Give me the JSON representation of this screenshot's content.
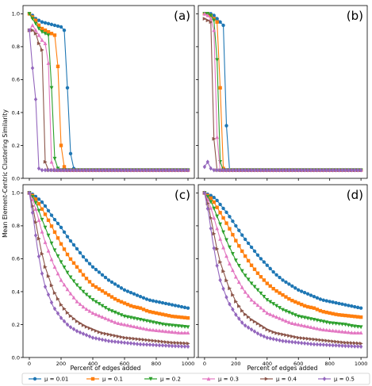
{
  "chart_data": {
    "type": "line",
    "ylabel": "Mean Element-Centric Clustering Similarity",
    "xlabel": "Percent of edges added",
    "xlim": [
      -40,
      1040
    ],
    "ylim": [
      0,
      1.05
    ],
    "xticks": [
      0,
      200,
      400,
      600,
      800,
      1000
    ],
    "yticks": [
      0.0,
      0.2,
      0.4,
      0.6,
      0.8,
      1.0
    ],
    "ytick_labels": [
      "0.0",
      "0.2",
      "0.4",
      "0.6",
      "0.8",
      "1.0"
    ],
    "grid": false,
    "legend": {
      "position": "bottom",
      "entries": [
        "μ = 0.01",
        "μ = 0.1",
        "μ = 0.2",
        "μ = 0.3",
        "μ = 0.4",
        "μ = 0.5"
      ]
    },
    "colors": [
      "#1f77b4",
      "#ff7f0e",
      "#2ca02c",
      "#e377c2",
      "#8c564b",
      "#9467bd"
    ],
    "markers": [
      "circle",
      "square",
      "triangle-down",
      "triangle-up",
      "triangle-right",
      "diamond"
    ],
    "panels": [
      {
        "label": "(a)",
        "series": [
          {
            "name": "μ = 0.01",
            "x": [
              0,
              20,
              40,
              60,
              80,
              100,
              120,
              140,
              160,
              180,
              200,
              220,
              240,
              260,
              280,
              300,
              1000
            ],
            "y": [
              1.0,
              0.99,
              0.97,
              0.96,
              0.95,
              0.945,
              0.94,
              0.935,
              0.93,
              0.925,
              0.92,
              0.9,
              0.55,
              0.15,
              0.06,
              0.05,
              0.05
            ]
          },
          {
            "name": "μ = 0.1",
            "x": [
              0,
              20,
              40,
              60,
              80,
              100,
              120,
              140,
              160,
              180,
              200,
              220,
              240,
              1000
            ],
            "y": [
              1.0,
              0.98,
              0.96,
              0.93,
              0.91,
              0.9,
              0.89,
              0.88,
              0.87,
              0.68,
              0.2,
              0.07,
              0.05,
              0.05
            ]
          },
          {
            "name": "μ = 0.2",
            "x": [
              0,
              20,
              40,
              60,
              80,
              100,
              120,
              140,
              160,
              180,
              200,
              1000
            ],
            "y": [
              1.0,
              0.97,
              0.94,
              0.91,
              0.89,
              0.88,
              0.87,
              0.55,
              0.12,
              0.06,
              0.05,
              0.05
            ]
          },
          {
            "name": "μ = 0.3",
            "x": [
              0,
              20,
              40,
              60,
              80,
              100,
              120,
              140,
              160,
              1000
            ],
            "y": [
              0.9,
              0.93,
              0.9,
              0.87,
              0.84,
              0.82,
              0.7,
              0.1,
              0.05,
              0.05
            ]
          },
          {
            "name": "μ = 0.4",
            "x": [
              0,
              20,
              40,
              60,
              80,
              100,
              120,
              1000
            ],
            "y": [
              0.9,
              0.9,
              0.88,
              0.82,
              0.78,
              0.1,
              0.05,
              0.05
            ]
          },
          {
            "name": "μ = 0.5",
            "x": [
              0,
              20,
              40,
              60,
              80,
              1000
            ],
            "y": [
              0.9,
              0.67,
              0.48,
              0.06,
              0.05,
              0.05
            ]
          }
        ]
      },
      {
        "label": "(b)",
        "series": [
          {
            "name": "μ = 0.01",
            "x": [
              0,
              20,
              40,
              60,
              80,
              100,
              120,
              140,
              160,
              1000
            ],
            "y": [
              1.0,
              1.0,
              1.0,
              0.99,
              0.97,
              0.95,
              0.93,
              0.32,
              0.05,
              0.05
            ]
          },
          {
            "name": "μ = 0.1",
            "x": [
              0,
              20,
              40,
              60,
              80,
              100,
              120,
              140,
              1000
            ],
            "y": [
              1.0,
              1.0,
              0.99,
              0.97,
              0.95,
              0.55,
              0.06,
              0.05,
              0.05
            ]
          },
          {
            "name": "μ = 0.2",
            "x": [
              0,
              20,
              40,
              60,
              80,
              100,
              120,
              1000
            ],
            "y": [
              1.0,
              1.0,
              0.99,
              0.96,
              0.72,
              0.1,
              0.05,
              0.05
            ]
          },
          {
            "name": "μ = 0.3",
            "x": [
              0,
              20,
              40,
              60,
              80,
              100,
              1000
            ],
            "y": [
              1.0,
              0.99,
              0.97,
              0.9,
              0.25,
              0.05,
              0.05
            ]
          },
          {
            "name": "μ = 0.4",
            "x": [
              0,
              20,
              40,
              60,
              80,
              1000
            ],
            "y": [
              0.97,
              0.96,
              0.95,
              0.24,
              0.05,
              0.05
            ]
          },
          {
            "name": "μ = 0.5",
            "x": [
              0,
              20,
              40,
              60,
              1000
            ],
            "y": [
              0.07,
              0.1,
              0.06,
              0.05,
              0.05
            ]
          }
        ]
      },
      {
        "label": "(c)",
        "series": [
          {
            "name": "μ = 0.01",
            "x": [
              0,
              25,
              50,
              75,
              100,
              150,
              200,
              250,
              300,
              350,
              400,
              450,
              500,
              550,
              600,
              650,
              700,
              750,
              800,
              850,
              900,
              950,
              1000
            ],
            "y": [
              1.0,
              0.99,
              0.97,
              0.95,
              0.92,
              0.85,
              0.79,
              0.72,
              0.66,
              0.6,
              0.55,
              0.51,
              0.47,
              0.44,
              0.41,
              0.39,
              0.37,
              0.35,
              0.34,
              0.33,
              0.32,
              0.31,
              0.3
            ]
          },
          {
            "name": "μ = 0.1",
            "x": [
              0,
              25,
              50,
              75,
              100,
              150,
              200,
              250,
              300,
              350,
              400,
              450,
              500,
              550,
              600,
              650,
              700,
              750,
              800,
              850,
              900,
              950,
              1000
            ],
            "y": [
              1.0,
              0.98,
              0.95,
              0.91,
              0.87,
              0.78,
              0.69,
              0.61,
              0.55,
              0.49,
              0.44,
              0.41,
              0.38,
              0.35,
              0.33,
              0.31,
              0.3,
              0.28,
              0.27,
              0.26,
              0.25,
              0.245,
              0.24
            ]
          },
          {
            "name": "μ = 0.2",
            "x": [
              0,
              25,
              50,
              75,
              100,
              150,
              200,
              250,
              300,
              350,
              400,
              450,
              500,
              550,
              600,
              650,
              700,
              750,
              800,
              850,
              900,
              950,
              1000
            ],
            "y": [
              1.0,
              0.97,
              0.92,
              0.85,
              0.79,
              0.67,
              0.58,
              0.5,
              0.44,
              0.39,
              0.35,
              0.32,
              0.29,
              0.27,
              0.25,
              0.24,
              0.23,
              0.22,
              0.21,
              0.2,
              0.195,
              0.19,
              0.185
            ]
          },
          {
            "name": "μ = 0.3",
            "x": [
              0,
              25,
              50,
              75,
              100,
              150,
              200,
              250,
              300,
              350,
              400,
              450,
              500,
              550,
              600,
              650,
              700,
              750,
              800,
              850,
              900,
              950,
              1000
            ],
            "y": [
              1.0,
              0.95,
              0.87,
              0.78,
              0.7,
              0.57,
              0.47,
              0.4,
              0.34,
              0.3,
              0.27,
              0.25,
              0.23,
              0.21,
              0.2,
              0.19,
              0.18,
              0.17,
              0.165,
              0.16,
              0.155,
              0.15,
              0.15
            ]
          },
          {
            "name": "μ = 0.4",
            "x": [
              0,
              25,
              50,
              75,
              100,
              150,
              200,
              250,
              300,
              350,
              400,
              450,
              500,
              550,
              600,
              650,
              700,
              750,
              800,
              850,
              900,
              950,
              1000
            ],
            "y": [
              1.0,
              0.9,
              0.77,
              0.65,
              0.55,
              0.41,
              0.32,
              0.26,
              0.22,
              0.19,
              0.17,
              0.15,
              0.14,
              0.13,
              0.12,
              0.115,
              0.11,
              0.105,
              0.1,
              0.095,
              0.09,
              0.088,
              0.085
            ]
          },
          {
            "name": "μ = 0.5",
            "x": [
              0,
              25,
              50,
              75,
              100,
              150,
              200,
              250,
              300,
              350,
              400,
              450,
              500,
              550,
              600,
              650,
              700,
              750,
              800,
              850,
              900,
              950,
              1000
            ],
            "y": [
              1.0,
              0.85,
              0.67,
              0.53,
              0.43,
              0.31,
              0.24,
              0.19,
              0.16,
              0.14,
              0.12,
              0.11,
              0.1,
              0.095,
              0.09,
              0.085,
              0.08,
              0.078,
              0.075,
              0.073,
              0.07,
              0.068,
              0.066
            ]
          }
        ]
      },
      {
        "label": "(d)",
        "series": [
          {
            "name": "μ = 0.01",
            "x": [
              0,
              25,
              50,
              75,
              100,
              150,
              200,
              250,
              300,
              350,
              400,
              450,
              500,
              550,
              600,
              650,
              700,
              750,
              800,
              850,
              900,
              950,
              1000
            ],
            "y": [
              1.0,
              0.99,
              0.98,
              0.96,
              0.93,
              0.87,
              0.8,
              0.73,
              0.67,
              0.61,
              0.56,
              0.51,
              0.47,
              0.44,
              0.41,
              0.39,
              0.37,
              0.35,
              0.34,
              0.33,
              0.32,
              0.31,
              0.3
            ]
          },
          {
            "name": "μ = 0.1",
            "x": [
              0,
              25,
              50,
              75,
              100,
              150,
              200,
              250,
              300,
              350,
              400,
              450,
              500,
              550,
              600,
              650,
              700,
              750,
              800,
              850,
              900,
              950,
              1000
            ],
            "y": [
              1.0,
              0.98,
              0.96,
              0.92,
              0.88,
              0.8,
              0.71,
              0.63,
              0.56,
              0.5,
              0.45,
              0.41,
              0.38,
              0.35,
              0.33,
              0.31,
              0.3,
              0.28,
              0.27,
              0.26,
              0.255,
              0.25,
              0.245
            ]
          },
          {
            "name": "μ = 0.2",
            "x": [
              0,
              25,
              50,
              75,
              100,
              150,
              200,
              250,
              300,
              350,
              400,
              450,
              500,
              550,
              600,
              650,
              700,
              750,
              800,
              850,
              900,
              950,
              1000
            ],
            "y": [
              1.0,
              0.97,
              0.93,
              0.87,
              0.81,
              0.69,
              0.59,
              0.51,
              0.45,
              0.4,
              0.35,
              0.32,
              0.29,
              0.27,
              0.25,
              0.24,
              0.23,
              0.22,
              0.21,
              0.205,
              0.2,
              0.19,
              0.185
            ]
          },
          {
            "name": "μ = 0.3",
            "x": [
              0,
              25,
              50,
              75,
              100,
              150,
              200,
              250,
              300,
              350,
              400,
              450,
              500,
              550,
              600,
              650,
              700,
              750,
              800,
              850,
              900,
              950,
              1000
            ],
            "y": [
              1.0,
              0.95,
              0.88,
              0.8,
              0.72,
              0.59,
              0.49,
              0.41,
              0.35,
              0.31,
              0.27,
              0.25,
              0.23,
              0.21,
              0.2,
              0.19,
              0.18,
              0.17,
              0.165,
              0.16,
              0.155,
              0.15,
              0.15
            ]
          },
          {
            "name": "μ = 0.4",
            "x": [
              0,
              25,
              50,
              75,
              100,
              150,
              200,
              250,
              300,
              350,
              400,
              450,
              500,
              550,
              600,
              650,
              700,
              750,
              800,
              850,
              900,
              950,
              1000
            ],
            "y": [
              1.0,
              0.92,
              0.8,
              0.68,
              0.58,
              0.44,
              0.34,
              0.27,
              0.23,
              0.2,
              0.17,
              0.15,
              0.14,
              0.13,
              0.12,
              0.115,
              0.11,
              0.105,
              0.1,
              0.095,
              0.09,
              0.088,
              0.085
            ]
          },
          {
            "name": "μ = 0.5",
            "x": [
              0,
              25,
              50,
              75,
              100,
              150,
              200,
              250,
              300,
              350,
              400,
              450,
              500,
              550,
              600,
              650,
              700,
              750,
              800,
              850,
              900,
              950,
              1000
            ],
            "y": [
              1.0,
              0.88,
              0.72,
              0.58,
              0.47,
              0.34,
              0.26,
              0.2,
              0.17,
              0.14,
              0.12,
              0.11,
              0.1,
              0.095,
              0.09,
              0.085,
              0.08,
              0.078,
              0.075,
              0.073,
              0.07,
              0.068,
              0.066
            ]
          }
        ]
      }
    ]
  }
}
